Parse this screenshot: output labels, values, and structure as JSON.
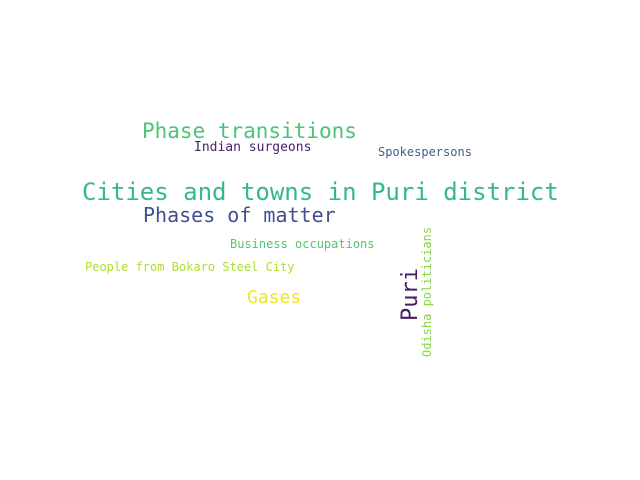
{
  "words": [
    {
      "key": "cities_puri",
      "text": "Cities and towns in Puri district",
      "color": "#35b78f"
    },
    {
      "key": "phase_transitions",
      "text": "Phase transitions",
      "color": "#4cc473"
    },
    {
      "key": "phases_of_matter",
      "text": "Phases of matter",
      "color": "#404f8e"
    },
    {
      "key": "indian_surgeons",
      "text": "Indian surgeons",
      "color": "#46226f"
    },
    {
      "key": "spokespersons",
      "text": "Spokespersons",
      "color": "#415c8d"
    },
    {
      "key": "business_occupations",
      "text": "Business occupations",
      "color": "#55c56b"
    },
    {
      "key": "people_bokaro",
      "text": "People from Bokaro Steel City",
      "color": "#b0dc34"
    },
    {
      "key": "gases",
      "text": "Gases",
      "color": "#f0e523"
    },
    {
      "key": "puri",
      "text": "Puri",
      "color": "#471b63"
    },
    {
      "key": "odisha_politicians",
      "text": "Odisha politicians",
      "color": "#8ad449"
    }
  ]
}
